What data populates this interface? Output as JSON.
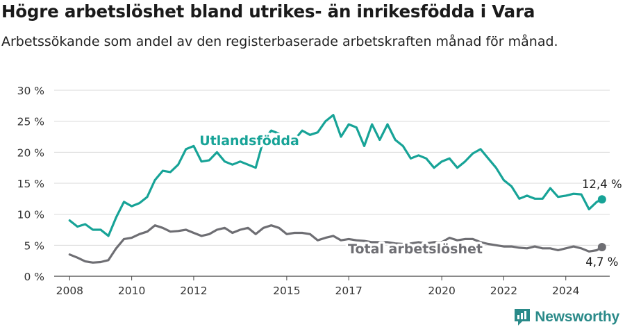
{
  "title": "Högre arbetslöshet bland utrikes- än inrikesfödda i Vara",
  "subtitle": "Arbetssökande som andel av den registerbaserade arbetskraften månad för månad.",
  "brand": "Newsworthy",
  "colors": {
    "foreign": "#17a397",
    "total": "#6e6e73",
    "grid": "#d9d9d9",
    "axis": "#444444",
    "brand": "#2a8a89"
  },
  "chart_data": {
    "type": "line",
    "x_ticks": [
      "2008",
      "2010",
      "2012",
      "2015",
      "2017",
      "2020",
      "2022",
      "2024"
    ],
    "y_ticks": [
      "0 %",
      "5 %",
      "10 %",
      "15 %",
      "20 %",
      "25 %",
      "30 %"
    ],
    "ylim": [
      0,
      30
    ],
    "xlim": [
      "2007-07",
      "2025-06"
    ],
    "grid": true,
    "series": [
      {
        "name": "Utlandsfödda",
        "end_label": "12,4 %",
        "points": [
          [
            "2008-01",
            9.0
          ],
          [
            "2008-04",
            8.0
          ],
          [
            "2008-07",
            8.4
          ],
          [
            "2008-10",
            7.5
          ],
          [
            "2009-01",
            7.5
          ],
          [
            "2009-04",
            6.5
          ],
          [
            "2009-07",
            9.5
          ],
          [
            "2009-10",
            12.0
          ],
          [
            "2010-01",
            11.3
          ],
          [
            "2010-04",
            11.8
          ],
          [
            "2010-07",
            12.8
          ],
          [
            "2010-10",
            15.5
          ],
          [
            "2011-01",
            17.0
          ],
          [
            "2011-04",
            16.8
          ],
          [
            "2011-07",
            18.0
          ],
          [
            "2011-10",
            20.5
          ],
          [
            "2012-01",
            21.0
          ],
          [
            "2012-04",
            18.5
          ],
          [
            "2012-07",
            18.7
          ],
          [
            "2012-10",
            20.0
          ],
          [
            "2013-01",
            18.5
          ],
          [
            "2013-04",
            18.0
          ],
          [
            "2013-07",
            18.5
          ],
          [
            "2013-10",
            18.0
          ],
          [
            "2014-01",
            17.5
          ],
          [
            "2014-04",
            22.0
          ],
          [
            "2014-07",
            23.5
          ],
          [
            "2014-10",
            23.0
          ],
          [
            "2015-01",
            21.0
          ],
          [
            "2015-04",
            22.0
          ],
          [
            "2015-07",
            23.5
          ],
          [
            "2015-10",
            22.8
          ],
          [
            "2016-01",
            23.2
          ],
          [
            "2016-04",
            25.0
          ],
          [
            "2016-07",
            26.0
          ],
          [
            "2016-10",
            22.5
          ],
          [
            "2017-01",
            24.5
          ],
          [
            "2017-04",
            24.0
          ],
          [
            "2017-07",
            21.0
          ],
          [
            "2017-10",
            24.5
          ],
          [
            "2018-01",
            22.0
          ],
          [
            "2018-04",
            24.5
          ],
          [
            "2018-07",
            22.0
          ],
          [
            "2018-10",
            21.0
          ],
          [
            "2019-01",
            19.0
          ],
          [
            "2019-04",
            19.5
          ],
          [
            "2019-07",
            19.0
          ],
          [
            "2019-10",
            17.5
          ],
          [
            "2020-01",
            18.5
          ],
          [
            "2020-04",
            19.0
          ],
          [
            "2020-07",
            17.5
          ],
          [
            "2020-10",
            18.5
          ],
          [
            "2021-01",
            19.8
          ],
          [
            "2021-04",
            20.5
          ],
          [
            "2021-07",
            19.0
          ],
          [
            "2021-10",
            17.5
          ],
          [
            "2022-01",
            15.5
          ],
          [
            "2022-04",
            14.5
          ],
          [
            "2022-07",
            12.5
          ],
          [
            "2022-10",
            13.0
          ],
          [
            "2023-01",
            12.5
          ],
          [
            "2023-04",
            12.5
          ],
          [
            "2023-07",
            14.2
          ],
          [
            "2023-10",
            12.8
          ],
          [
            "2024-01",
            13.0
          ],
          [
            "2024-04",
            13.3
          ],
          [
            "2024-07",
            13.2
          ],
          [
            "2024-10",
            10.8
          ],
          [
            "2025-01",
            12.0
          ],
          [
            "2025-03",
            12.4
          ]
        ]
      },
      {
        "name": "Total arbetslöshet",
        "end_label": "4,7 %",
        "points": [
          [
            "2008-01",
            3.5
          ],
          [
            "2008-04",
            3.0
          ],
          [
            "2008-07",
            2.4
          ],
          [
            "2008-10",
            2.2
          ],
          [
            "2009-01",
            2.3
          ],
          [
            "2009-04",
            2.6
          ],
          [
            "2009-07",
            4.5
          ],
          [
            "2009-10",
            6.0
          ],
          [
            "2010-01",
            6.2
          ],
          [
            "2010-04",
            6.8
          ],
          [
            "2010-07",
            7.2
          ],
          [
            "2010-10",
            8.2
          ],
          [
            "2011-01",
            7.8
          ],
          [
            "2011-04",
            7.2
          ],
          [
            "2011-07",
            7.3
          ],
          [
            "2011-10",
            7.5
          ],
          [
            "2012-01",
            7.0
          ],
          [
            "2012-04",
            6.5
          ],
          [
            "2012-07",
            6.8
          ],
          [
            "2012-10",
            7.5
          ],
          [
            "2013-01",
            7.8
          ],
          [
            "2013-04",
            7.0
          ],
          [
            "2013-07",
            7.5
          ],
          [
            "2013-10",
            7.8
          ],
          [
            "2014-01",
            6.8
          ],
          [
            "2014-04",
            7.8
          ],
          [
            "2014-07",
            8.2
          ],
          [
            "2014-10",
            7.8
          ],
          [
            "2015-01",
            6.8
          ],
          [
            "2015-04",
            7.0
          ],
          [
            "2015-07",
            7.0
          ],
          [
            "2015-10",
            6.8
          ],
          [
            "2016-01",
            5.8
          ],
          [
            "2016-04",
            6.2
          ],
          [
            "2016-07",
            6.5
          ],
          [
            "2016-10",
            5.8
          ],
          [
            "2017-01",
            6.0
          ],
          [
            "2017-04",
            5.8
          ],
          [
            "2017-07",
            5.7
          ],
          [
            "2017-10",
            5.5
          ],
          [
            "2018-01",
            5.5
          ],
          [
            "2018-04",
            5.5
          ],
          [
            "2018-07",
            5.3
          ],
          [
            "2018-10",
            5.2
          ],
          [
            "2019-01",
            5.3
          ],
          [
            "2019-04",
            5.5
          ],
          [
            "2019-07",
            5.3
          ],
          [
            "2019-10",
            5.5
          ],
          [
            "2020-01",
            5.5
          ],
          [
            "2020-04",
            6.2
          ],
          [
            "2020-07",
            5.8
          ],
          [
            "2020-10",
            6.0
          ],
          [
            "2021-01",
            6.0
          ],
          [
            "2021-04",
            5.5
          ],
          [
            "2021-07",
            5.2
          ],
          [
            "2021-10",
            5.0
          ],
          [
            "2022-01",
            4.8
          ],
          [
            "2022-04",
            4.8
          ],
          [
            "2022-07",
            4.6
          ],
          [
            "2022-10",
            4.5
          ],
          [
            "2023-01",
            4.8
          ],
          [
            "2023-04",
            4.5
          ],
          [
            "2023-07",
            4.5
          ],
          [
            "2023-10",
            4.2
          ],
          [
            "2024-01",
            4.5
          ],
          [
            "2024-04",
            4.8
          ],
          [
            "2024-07",
            4.5
          ],
          [
            "2024-10",
            4.0
          ],
          [
            "2025-01",
            4.2
          ],
          [
            "2025-03",
            4.7
          ]
        ]
      }
    ]
  }
}
